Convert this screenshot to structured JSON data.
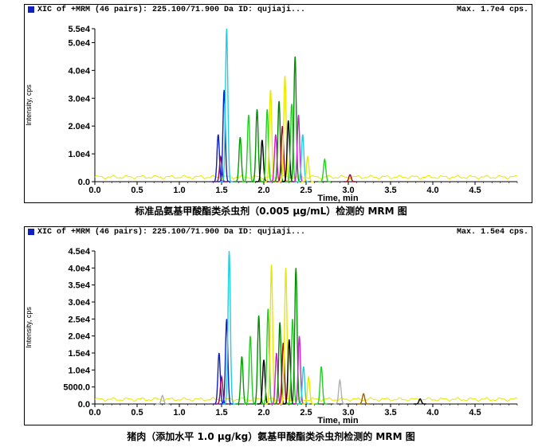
{
  "chart_data": [
    {
      "type": "line",
      "panel_title": "XIC of +MRM (46 pairs): 225.100/71.900 Da ID: qujiaji...",
      "max_label": "Max. 1.7e4 cps.",
      "xlabel": "Time, min",
      "ylabel": "Intensity, cps",
      "caption": "标准品氨基甲酸酯类杀虫剂（0.005 μg/mL）检测的 MRM 图",
      "xlim": [
        0,
        5
      ],
      "ylim": [
        0,
        55000
      ],
      "x_ticks": [
        "0.0",
        "0.5",
        "1.0",
        "1.5",
        "2.0",
        "2.5",
        "3.0",
        "3.5",
        "4.0",
        "4.5"
      ],
      "y_ticks": [
        {
          "v": 0,
          "label": "0.0"
        },
        {
          "v": 10000,
          "label": "1.0e4"
        },
        {
          "v": 20000,
          "label": "2.0e4"
        },
        {
          "v": 30000,
          "label": "3.0e4"
        },
        {
          "v": 40000,
          "label": "4.0e4"
        },
        {
          "v": 50000,
          "label": "5.0e4"
        },
        {
          "v": 55000,
          "label": "5.5e4"
        }
      ],
      "baseline_color": "#e8e800",
      "peaks": [
        {
          "t": 1.46,
          "h": 17000,
          "color": "#1020c0"
        },
        {
          "t": 1.49,
          "h": 9000,
          "color": "#9b0060"
        },
        {
          "t": 1.53,
          "h": 33000,
          "color": "#1020c0"
        },
        {
          "t": 1.56,
          "h": 55000,
          "color": "#20d0e0"
        },
        {
          "t": 1.72,
          "h": 16000,
          "color": "#00a000"
        },
        {
          "t": 1.82,
          "h": 24000,
          "color": "#20d020"
        },
        {
          "t": 1.92,
          "h": 26000,
          "color": "#009000"
        },
        {
          "t": 1.98,
          "h": 15000,
          "color": "#000000"
        },
        {
          "t": 2.04,
          "h": 26000,
          "color": "#20d020"
        },
        {
          "t": 2.08,
          "h": 33000,
          "color": "#e8e800"
        },
        {
          "t": 2.14,
          "h": 17000,
          "color": "#d020d0"
        },
        {
          "t": 2.18,
          "h": 29000,
          "color": "#008000"
        },
        {
          "t": 2.22,
          "h": 20000,
          "color": "#a00020"
        },
        {
          "t": 2.25,
          "h": 38000,
          "color": "#e8e800"
        },
        {
          "t": 2.29,
          "h": 22000,
          "color": "#000000"
        },
        {
          "t": 2.33,
          "h": 28000,
          "color": "#20d020"
        },
        {
          "t": 2.37,
          "h": 45000,
          "color": "#009000"
        },
        {
          "t": 2.41,
          "h": 24000,
          "color": "#d020d0"
        },
        {
          "t": 2.46,
          "h": 17000,
          "color": "#20d0e0"
        },
        {
          "t": 2.52,
          "h": 9000,
          "color": "#e8e800"
        },
        {
          "t": 2.72,
          "h": 8000,
          "color": "#20d020"
        },
        {
          "t": 3.02,
          "h": 2500,
          "color": "#a00020"
        }
      ]
    },
    {
      "type": "line",
      "panel_title": "XIC of +MRM (46 pairs): 225.100/71.900 Da ID: qujiaji...",
      "max_label": "Max. 1.5e4 cps.",
      "xlabel": "Time, min",
      "ylabel": "Intensity, cps",
      "caption": "猪肉（添加水平 1.0 μg/kg）氨基甲酸酯类杀虫剂检测的 MRM 图",
      "xlim": [
        0,
        5
      ],
      "ylim": [
        0,
        45000
      ],
      "x_ticks": [
        "0.0",
        "0.5",
        "1.0",
        "1.5",
        "2.0",
        "2.5",
        "3.0",
        "3.5",
        "4.0",
        "4.5"
      ],
      "y_ticks": [
        {
          "v": 0,
          "label": "0.0"
        },
        {
          "v": 5000,
          "label": "5000.0"
        },
        {
          "v": 10000,
          "label": "1.0e4"
        },
        {
          "v": 15000,
          "label": "1.5e4"
        },
        {
          "v": 20000,
          "label": "2.0e4"
        },
        {
          "v": 25000,
          "label": "2.5e4"
        },
        {
          "v": 30000,
          "label": "3.0e4"
        },
        {
          "v": 35000,
          "label": "3.5e4"
        },
        {
          "v": 40000,
          "label": "4.0e4"
        },
        {
          "v": 45000,
          "label": "4.5e4"
        }
      ],
      "baseline_color": "#e8e800",
      "peaks": [
        {
          "t": 0.8,
          "h": 2500,
          "color": "#b0b0b0"
        },
        {
          "t": 1.47,
          "h": 15000,
          "color": "#1020c0"
        },
        {
          "t": 1.5,
          "h": 8000,
          "color": "#9b0060"
        },
        {
          "t": 1.56,
          "h": 25000,
          "color": "#1020c0"
        },
        {
          "t": 1.59,
          "h": 45000,
          "color": "#20d0e0"
        },
        {
          "t": 1.74,
          "h": 14000,
          "color": "#00a000"
        },
        {
          "t": 1.84,
          "h": 20000,
          "color": "#20d020"
        },
        {
          "t": 1.94,
          "h": 26000,
          "color": "#009000"
        },
        {
          "t": 2.0,
          "h": 13000,
          "color": "#000000"
        },
        {
          "t": 2.05,
          "h": 28000,
          "color": "#20d020"
        },
        {
          "t": 2.09,
          "h": 41000,
          "color": "#e8e800"
        },
        {
          "t": 2.15,
          "h": 15000,
          "color": "#d020d0"
        },
        {
          "t": 2.19,
          "h": 24000,
          "color": "#008000"
        },
        {
          "t": 2.23,
          "h": 18000,
          "color": "#a00020"
        },
        {
          "t": 2.26,
          "h": 40000,
          "color": "#e8e800"
        },
        {
          "t": 2.3,
          "h": 19000,
          "color": "#000000"
        },
        {
          "t": 2.34,
          "h": 25000,
          "color": "#20d020"
        },
        {
          "t": 2.38,
          "h": 40000,
          "color": "#009000"
        },
        {
          "t": 2.42,
          "h": 20000,
          "color": "#d020d0"
        },
        {
          "t": 2.47,
          "h": 11000,
          "color": "#20d0e0"
        },
        {
          "t": 2.53,
          "h": 8000,
          "color": "#e8e800"
        },
        {
          "t": 2.68,
          "h": 11000,
          "color": "#20d020"
        },
        {
          "t": 2.9,
          "h": 7000,
          "color": "#b0b0b0"
        },
        {
          "t": 3.18,
          "h": 3000,
          "color": "#a06000"
        },
        {
          "t": 3.85,
          "h": 1500,
          "color": "#000000"
        }
      ]
    }
  ]
}
